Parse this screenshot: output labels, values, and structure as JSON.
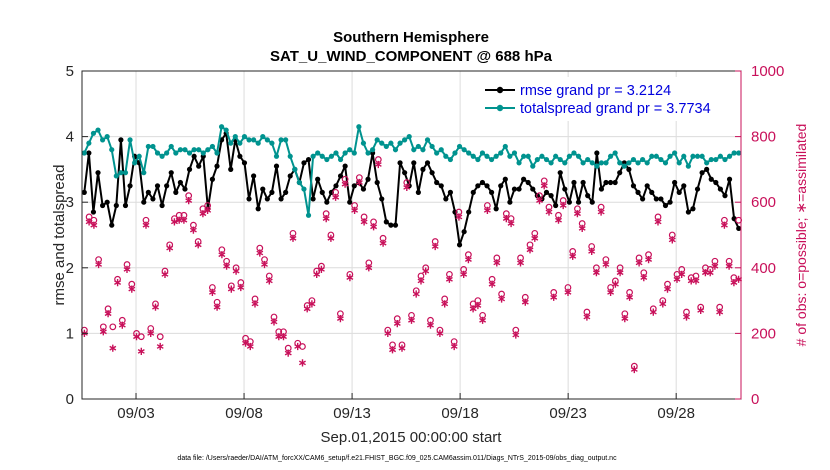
{
  "chart_data": {
    "type": "line",
    "title": "Southern Hemisphere",
    "subtitle": "SAT_U_WIND_COMPONENT @ 688 hPa",
    "xlabel": "Sep.01,2015 00:00:00 start",
    "ylabel": "rmse and totalspread",
    "y2label": "# of obs: o=possible; ∗=assimilated",
    "footnote": "data file: /Users/raeder/DAI/ATM_forcXX/CAM6_setup/f.e21.FHIST_BGC.f09_025.CAM6assim.011/Diags_NTrS_2015-09/obs_diag_output.nc",
    "xlim": [
      0.5,
      31
    ],
    "ylim": [
      0,
      5
    ],
    "y2lim": [
      0,
      1000
    ],
    "x_ticks": [
      3,
      8,
      13,
      18,
      23,
      28
    ],
    "x_tick_labels": [
      "09/03",
      "09/08",
      "09/13",
      "09/18",
      "09/23",
      "09/28"
    ],
    "y_ticks": [
      0,
      1,
      2,
      3,
      4,
      5
    ],
    "y2_ticks": [
      0,
      200,
      400,
      600,
      800,
      1000
    ],
    "grid": true,
    "legend_position": "top-right",
    "series": [
      {
        "name": "rmse grand pr = 3.2124",
        "color": "#000000",
        "axis": "left",
        "marker": "dot",
        "values": [
          3.15,
          3.75,
          2.85,
          3.45,
          2.95,
          3.0,
          2.65,
          2.95,
          3.95,
          2.95,
          3.25,
          3.7,
          3.6,
          3.0,
          3.15,
          3.05,
          3.25,
          2.95,
          3.25,
          3.45,
          3.15,
          3.3,
          3.2,
          3.5,
          3.7,
          3.55,
          3.7,
          2.9,
          3.35,
          3.55,
          3.95,
          4.05,
          3.5,
          3.95,
          3.7,
          3.6,
          3.05,
          3.4,
          2.9,
          3.2,
          3.05,
          3.15,
          3.55,
          3.05,
          3.15,
          3.4,
          3.5,
          3.3,
          3.6,
          3.65,
          3.05,
          3.35,
          3.15,
          3.0,
          3.15,
          3.25,
          3.4,
          3.55,
          3.0,
          3.25,
          3.3,
          3.2,
          3.35,
          3.75,
          3.3,
          3.05,
          2.7,
          2.65,
          2.65,
          3.6,
          3.45,
          3.25,
          3.6,
          3.15,
          3.5,
          3.6,
          3.45,
          3.3,
          3.25,
          3.05,
          3.15,
          2.85,
          2.35,
          2.55,
          2.85,
          3.15,
          3.25,
          3.3,
          3.25,
          3.15,
          2.9,
          3.25,
          3.35,
          3.0,
          3.2,
          3.2,
          3.35,
          3.3,
          3.2,
          3.1,
          3.05,
          3.15,
          3.1,
          2.95,
          3.45,
          3.2,
          3.0,
          3.3,
          3.0,
          3.3,
          3.1,
          3.0,
          3.75,
          3.2,
          3.3,
          3.3,
          3.3,
          3.45,
          3.6,
          3.5,
          3.25,
          3.15,
          3.05,
          3.25,
          3.15,
          3.05,
          3.05,
          2.95,
          3.0,
          3.3,
          3.15,
          3.25,
          2.85,
          2.9,
          3.2,
          3.45,
          3.5,
          3.35,
          3.3,
          3.2,
          3.1,
          3.35,
          2.75,
          2.6
        ]
      },
      {
        "name": "totalspread grand pr = 3.7734",
        "color": "#00938f",
        "axis": "left",
        "marker": "dot",
        "values": [
          3.75,
          3.9,
          4.05,
          4.1,
          3.95,
          4.0,
          3.8,
          3.4,
          3.45,
          3.45,
          3.95,
          3.6,
          3.7,
          3.45,
          3.85,
          3.85,
          3.75,
          3.7,
          3.75,
          3.85,
          3.75,
          3.8,
          3.8,
          3.75,
          3.8,
          3.8,
          3.75,
          3.8,
          3.85,
          3.75,
          4.15,
          4.1,
          3.9,
          4.0,
          3.9,
          4.0,
          3.95,
          3.95,
          3.9,
          4.0,
          3.95,
          3.9,
          3.7,
          3.95,
          3.95,
          3.7,
          3.5,
          3.3,
          3.2,
          2.8,
          3.7,
          3.75,
          3.7,
          3.65,
          3.7,
          3.75,
          3.65,
          3.75,
          3.8,
          3.75,
          4.15,
          3.9,
          3.75,
          3.8,
          3.95,
          3.9,
          3.85,
          3.9,
          3.8,
          3.9,
          3.95,
          4.0,
          3.8,
          3.85,
          3.8,
          3.95,
          3.85,
          3.75,
          3.8,
          3.7,
          3.65,
          3.75,
          3.85,
          3.8,
          3.75,
          3.7,
          3.65,
          3.75,
          3.7,
          3.65,
          3.7,
          3.75,
          3.85,
          3.7,
          3.75,
          3.6,
          3.7,
          3.7,
          3.55,
          3.65,
          3.7,
          3.65,
          3.6,
          3.7,
          3.65,
          3.6,
          3.7,
          3.75,
          3.7,
          3.6,
          3.65,
          3.6,
          3.55,
          3.6,
          3.6,
          3.7,
          3.75,
          3.6,
          3.55,
          3.6,
          3.65,
          3.6,
          3.65,
          3.6,
          3.7,
          3.7,
          3.65,
          3.6,
          3.7,
          3.75,
          3.6,
          3.7,
          3.55,
          3.7,
          3.7,
          3.7,
          3.6,
          3.65,
          3.65,
          3.7,
          3.65,
          3.7,
          3.75,
          3.75
        ]
      },
      {
        "name": "# of obs possible",
        "color": "#c8105a",
        "axis": "right",
        "marker": "circle",
        "values": [
          210,
          555,
          545,
          425,
          220,
          275,
          220,
          365,
          240,
          410,
          350,
          200,
          190,
          545,
          215,
          290,
          190,
          390,
          470,
          550,
          560,
          560,
          620,
          530,
          480,
          580,
          590,
          340,
          295,
          455,
          420,
          345,
          400,
          355,
          185,
          175,
          305,
          460,
          425,
          375,
          250,
          205,
          205,
          155,
          505,
          170,
          160,
          285,
          300,
          390,
          405,
          565,
          500,
          630,
          260,
          670,
          380,
          590,
          675,
          555,
          415,
          540,
          730,
          490,
          210,
          165,
          245,
          165,
          660,
          255,
          330,
          375,
          400,
          240,
          480,
          210,
          305,
          380,
          175,
          570,
          395,
          440,
          290,
          300,
          255,
          590,
          365,
          430,
          320,
          565,
          550,
          210,
          430,
          310,
          470,
          505,
          620,
          665,
          585,
          325,
          560,
          605,
          340,
          450,
          580,
          535,
          265,
          465,
          400,
          585,
          425,
          340,
          360,
          400,
          260,
          325,
          100,
          430,
          385,
          440,
          275,
          555,
          300,
          350,
          500,
          380,
          395,
          265,
          370,
          375,
          280,
          400,
          395,
          420,
          280,
          545,
          420,
          370,
          545
        ]
      },
      {
        "name": "# of obs assimilated",
        "color": "#c8105a",
        "axis": "right",
        "marker": "star",
        "values": [
          200,
          540,
          530,
          410,
          205,
          260,
          155,
          355,
          225,
          395,
          335,
          190,
          145,
          530,
          200,
          280,
          160,
          380,
          460,
          540,
          545,
          545,
          605,
          515,
          470,
          565,
          575,
          325,
          280,
          440,
          405,
          335,
          390,
          340,
          170,
          160,
          290,
          445,
          410,
          360,
          235,
          190,
          190,
          140,
          490,
          160,
          110,
          275,
          290,
          380,
          395,
          550,
          490,
          615,
          245,
          655,
          370,
          575,
          660,
          540,
          400,
          525,
          715,
          475,
          200,
          150,
          230,
          155,
          645,
          240,
          320,
          360,
          390,
          225,
          465,
          200,
          290,
          365,
          160,
          555,
          380,
          425,
          275,
          285,
          240,
          575,
          350,
          415,
          305,
          550,
          535,
          195,
          415,
          295,
          455,
          490,
          605,
          650,
          570,
          310,
          545,
          590,
          325,
          435,
          565,
          520,
          250,
          450,
          385,
          570,
          410,
          325,
          350,
          385,
          245,
          310,
          90,
          415,
          370,
          425,
          265,
          540,
          290,
          335,
          485,
          365,
          380,
          250,
          360,
          360,
          270,
          385,
          385,
          405,
          265,
          530,
          405,
          355,
          365
        ]
      }
    ]
  },
  "legend": {
    "rmse_label": "rmse grand pr = 3.2124",
    "spread_label": "totalspread grand pr = 3.7734"
  }
}
